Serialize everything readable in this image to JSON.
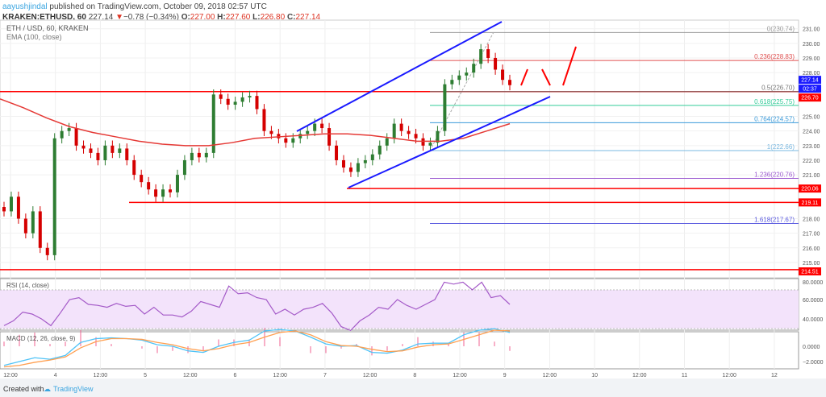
{
  "header": {
    "user": "aayushjindal",
    "published": "published on TradingView.com, October 09, 2018 02:57 UTC",
    "symbol": "KRAKEN:ETHUSD, 60",
    "last": "227.14",
    "change": "−0.78 (−0.34%)",
    "o_label": "O:",
    "o": "227.00",
    "h_label": "H:",
    "h": "227.60",
    "l_label": "L:",
    "l": "226.80",
    "c_label": "C:",
    "c": "227.14"
  },
  "main": {
    "title": "ETH / USD, 60, KRAKEN",
    "indicator": "EMA (100, close)",
    "price_ticks": [
      "231.00",
      "230.00",
      "229.00",
      "228.00",
      "225.00",
      "224.00",
      "223.00",
      "222.00",
      "221.00",
      "218.00",
      "217.00",
      "216.00",
      "215.00"
    ],
    "badges": [
      {
        "text": "227.14",
        "price": 227.14,
        "color": "#1a1aff"
      },
      {
        "text": "02:37",
        "price": 226.85,
        "color": "#1a1aff"
      },
      {
        "text": "226.70",
        "price": 226.7,
        "color": "#f00"
      },
      {
        "text": "220.06",
        "price": 220.06,
        "color": "#f00"
      },
      {
        "text": "219.11",
        "price": 219.11,
        "color": "#f00"
      },
      {
        "text": "214.51",
        "price": 214.51,
        "color": "#f00"
      }
    ],
    "fib": [
      {
        "label": "0(230.74)",
        "price": 230.74,
        "color": "#999"
      },
      {
        "label": "0.236(228.83)",
        "price": 228.83,
        "color": "#e05050"
      },
      {
        "label": "0.5(226.70)",
        "price": 226.7,
        "color": "#777"
      },
      {
        "label": "0.618(225.75)",
        "price": 225.75,
        "color": "#3c9"
      },
      {
        "label": "0.764(224.57)",
        "price": 224.57,
        "color": "#3a9ad9"
      },
      {
        "label": "1(222.66)",
        "price": 222.66,
        "color": "#7ab8e0"
      },
      {
        "label": "1.236(220.76)",
        "price": 220.76,
        "color": "#9b59d0"
      },
      {
        "label": "1.618(217.67)",
        "price": 217.67,
        "color": "#5b5be0"
      }
    ],
    "closes": [
      218.5,
      219.5,
      218,
      217,
      218.5,
      216,
      215.5,
      223.5,
      224,
      224.2,
      223,
      222.8,
      222.5,
      222,
      223,
      222.5,
      222.8,
      222,
      221,
      220.5,
      220,
      219.5,
      220,
      219.8,
      221,
      222,
      222.5,
      222.2,
      222.5,
      226.5,
      226.2,
      225.8,
      226,
      226.3,
      226.4,
      225.5,
      224,
      223.8,
      223.5,
      223.2,
      223.5,
      223.8,
      224,
      224.5,
      224.2,
      223,
      222,
      221.5,
      221.2,
      221.8,
      222,
      222.4,
      223,
      223.5,
      224.5,
      224,
      223.8,
      223.5,
      223,
      223.2,
      224,
      227.2,
      227.5,
      227.8,
      228,
      228.6,
      229.6,
      229,
      228.2,
      227.5,
      227.14
    ],
    "ema": [
      226.2,
      225.6,
      224.9,
      224.3,
      223.9,
      223.6,
      223.3,
      223.1,
      223.0,
      223.0,
      223.2,
      223.5,
      223.6,
      223.7,
      223.8,
      223.8,
      223.7,
      223.5,
      223.3,
      223.3,
      223.5,
      224.0,
      224.5
    ]
  },
  "rsi": {
    "label": "RSI (14, close)",
    "ticks": [
      "80.0000",
      "60.0000",
      "40.0000"
    ],
    "values": [
      33,
      38,
      47,
      45,
      40,
      33,
      46,
      60,
      62,
      55,
      54,
      52,
      56,
      53,
      54,
      45,
      52,
      44,
      44,
      42,
      48,
      58,
      55,
      52,
      74,
      66,
      67,
      62,
      60,
      45,
      50,
      44,
      50,
      52,
      56,
      46,
      32,
      28,
      38,
      44,
      52,
      50,
      60,
      54,
      50,
      55,
      60,
      78,
      76,
      78,
      70,
      78,
      62,
      64,
      55
    ]
  },
  "macd": {
    "label": "MACD (12, 26, close, 9)",
    "ticks": [
      "0.0000",
      "−2.0000"
    ],
    "macd": [
      -2.5,
      -2.0,
      -1.5,
      -1.7,
      -1.2,
      0.5,
      1.0,
      1.1,
      1.0,
      0.8,
      0.2,
      0,
      -0.6,
      -0.8,
      0,
      0.5,
      0.8,
      2.0,
      2.2,
      2.0,
      1.2,
      0.3,
      0,
      0.1,
      -0.8,
      -0.9,
      -0.5,
      0.3,
      0.4,
      0.4,
      1.5,
      2.1,
      2.3,
      1.8
    ],
    "signal": [
      -2.7,
      -2.5,
      -2.1,
      -1.8,
      -1.4,
      -0.2,
      0.6,
      1.0,
      1.0,
      0.9,
      0.5,
      0.2,
      -0.3,
      -0.6,
      -0.3,
      0.2,
      0.5,
      1.2,
      1.8,
      2.0,
      1.5,
      0.6,
      0.1,
      0,
      -0.4,
      -0.7,
      -0.6,
      -0.1,
      0.2,
      0.3,
      0.9,
      1.5,
      2.1,
      2.0
    ]
  },
  "time_ticks": [
    "12:00",
    "4",
    "12:00",
    "5",
    "12:00",
    "6",
    "12:00",
    "7",
    "12:00",
    "8",
    "12:00",
    "9",
    "12:00",
    "10",
    "12:00",
    "11",
    "12:00",
    "12"
  ],
  "footer": {
    "created": "Created with",
    "brand": "TradingView"
  },
  "colors": {
    "up": "#2e7d32",
    "down": "#d50000",
    "ema": "#e53935",
    "channel": "#1a1aff",
    "rsi": "#a45ac8"
  }
}
